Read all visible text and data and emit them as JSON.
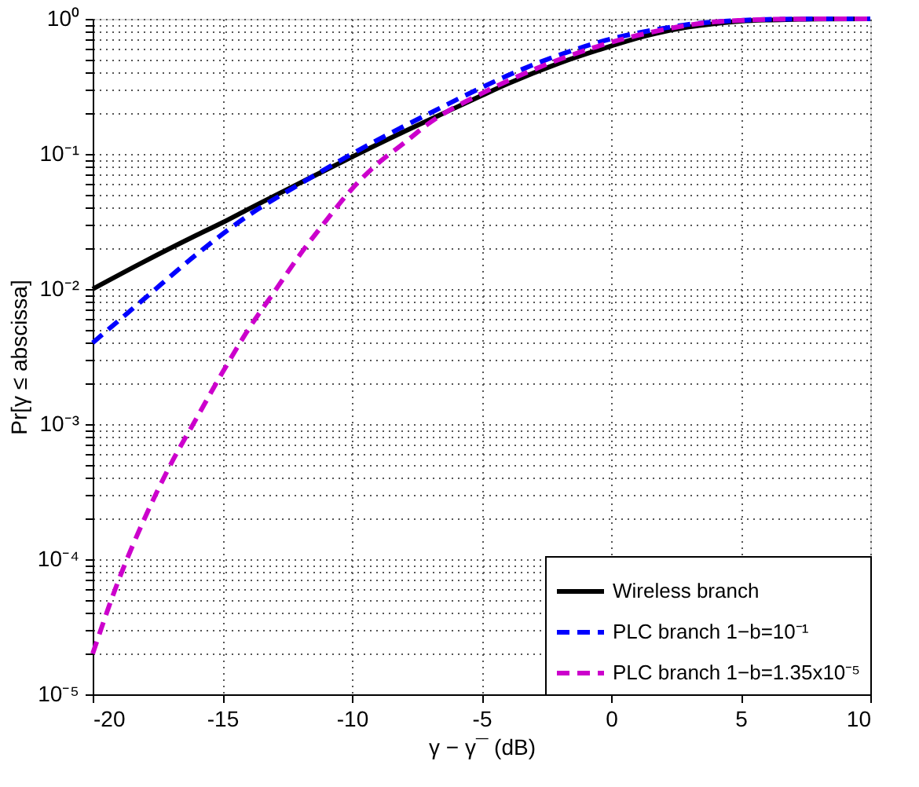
{
  "chart_data": {
    "type": "line",
    "xlabel": "γ − γ¯ (dB)",
    "ylabel": "Pr[γ ≤ abscissa]",
    "log": "y",
    "grid": true,
    "legend": "bottom right",
    "marker": "none",
    "xlim": [
      -20,
      10
    ],
    "xticks": [
      -20,
      -15,
      -10,
      -5,
      0,
      5,
      10
    ],
    "ylim": [
      1e-05,
      1
    ],
    "yticks": [
      {
        "value": 1e-05,
        "label": "10⁻⁵"
      },
      {
        "value": 2e-05,
        "label": null
      },
      {
        "value": 3e-05,
        "label": null
      },
      {
        "value": 4e-05,
        "label": null
      },
      {
        "value": 5e-05,
        "label": null
      },
      {
        "value": 6e-05,
        "label": null
      },
      {
        "value": 7e-05,
        "label": null
      },
      {
        "value": 8e-05,
        "label": null
      },
      {
        "value": 9e-05,
        "label": null
      },
      {
        "value": 0.0001,
        "label": "10⁻⁴"
      },
      {
        "value": 0.0002,
        "label": null
      },
      {
        "value": 0.0003,
        "label": null
      },
      {
        "value": 0.0004,
        "label": null
      },
      {
        "value": 0.0005,
        "label": null
      },
      {
        "value": 0.0006,
        "label": null
      },
      {
        "value": 0.0007,
        "label": null
      },
      {
        "value": 0.0008,
        "label": null
      },
      {
        "value": 0.0009,
        "label": null
      },
      {
        "value": 0.001,
        "label": "10⁻³"
      },
      {
        "value": 0.002,
        "label": null
      },
      {
        "value": 0.003,
        "label": null
      },
      {
        "value": 0.004,
        "label": null
      },
      {
        "value": 0.005,
        "label": null
      },
      {
        "value": 0.006,
        "label": null
      },
      {
        "value": 0.007,
        "label": null
      },
      {
        "value": 0.008,
        "label": null
      },
      {
        "value": 0.009,
        "label": null
      },
      {
        "value": 0.01,
        "label": "10⁻²"
      },
      {
        "value": 0.02,
        "label": null
      },
      {
        "value": 0.03,
        "label": null
      },
      {
        "value": 0.04,
        "label": null
      },
      {
        "value": 0.05,
        "label": null
      },
      {
        "value": 0.06,
        "label": null
      },
      {
        "value": 0.07,
        "label": null
      },
      {
        "value": 0.08,
        "label": null
      },
      {
        "value": 0.09,
        "label": null
      },
      {
        "value": 0.1,
        "label": "10⁻¹"
      },
      {
        "value": 0.2,
        "label": null
      },
      {
        "value": 0.3,
        "label": null
      },
      {
        "value": 0.4,
        "label": null
      },
      {
        "value": 0.5,
        "label": null
      },
      {
        "value": 0.6,
        "label": null
      },
      {
        "value": 0.7,
        "label": null
      },
      {
        "value": 0.8,
        "label": null
      },
      {
        "value": 0.9,
        "label": null
      },
      {
        "value": 1,
        "label": "10⁰"
      }
    ],
    "series": [
      {
        "name": "Wireless branch",
        "color": "#000000",
        "line_style": "solid",
        "x": [
          -20,
          -18,
          -16,
          -15,
          -14,
          -12,
          -10,
          -8,
          -6,
          -5,
          -4,
          -2,
          0,
          1,
          2,
          3,
          4,
          5,
          6,
          7,
          8,
          10
        ],
        "values": [
          0.01,
          0.016,
          0.025,
          0.031,
          0.039,
          0.061,
          0.095,
          0.146,
          0.22,
          0.27,
          0.33,
          0.47,
          0.63,
          0.72,
          0.8,
          0.87,
          0.92,
          0.96,
          0.98,
          0.99,
          0.998,
          1
        ]
      },
      {
        "name": "PLC branch 1−b=10⁻¹",
        "color": "#0000ff",
        "line_style": "dashed",
        "x": [
          -20,
          -18,
          -16,
          -14,
          -12,
          -10,
          -8,
          -7,
          -5,
          -4,
          -2,
          0,
          2,
          3,
          4,
          5,
          6,
          8,
          10
        ],
        "values": [
          0.004,
          0.0085,
          0.018,
          0.035,
          0.06,
          0.1,
          0.16,
          0.2,
          0.31,
          0.38,
          0.54,
          0.71,
          0.85,
          0.91,
          0.95,
          0.975,
          0.99,
          0.999,
          1
        ]
      },
      {
        "name": "PLC branch 1−b=1.35x10⁻⁵",
        "color": "#cc00cc",
        "line_style": "dashed",
        "x": [
          -20,
          -19,
          -18,
          -17,
          -16,
          -15,
          -14,
          -13,
          -12,
          -11,
          -10,
          -9,
          -8,
          -7,
          -5,
          -3,
          -2,
          0,
          2,
          3,
          4,
          5,
          6,
          8,
          10
        ],
        "values": [
          2e-05,
          7e-05,
          0.0002,
          0.0005,
          0.0011,
          0.0024,
          0.005,
          0.0095,
          0.018,
          0.032,
          0.055,
          0.085,
          0.12,
          0.17,
          0.28,
          0.42,
          0.5,
          0.67,
          0.83,
          0.9,
          0.95,
          0.975,
          0.99,
          0.999,
          1
        ]
      }
    ]
  }
}
